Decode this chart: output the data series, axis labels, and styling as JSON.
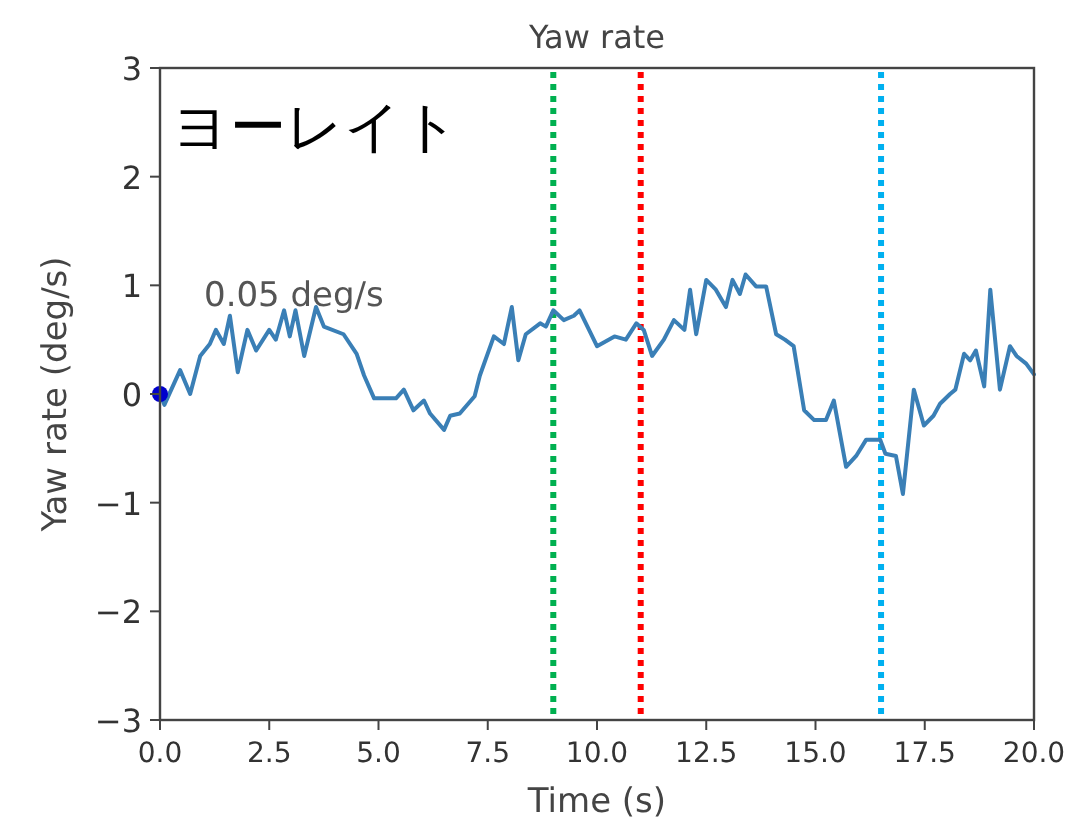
{
  "chart_data": {
    "type": "line",
    "title": "Yaw rate",
    "xlabel": "Time (s)",
    "ylabel": "Yaw rate (deg/s)",
    "annotations": [
      "ヨーレイト",
      "0.05 deg/s"
    ],
    "xlim": [
      0,
      20
    ],
    "ylim": [
      -3,
      3
    ],
    "xticks": [
      {
        "value": 0,
        "label": "0.0"
      },
      {
        "value": 2.5,
        "label": "2.5"
      },
      {
        "value": 5,
        "label": "5.0"
      },
      {
        "value": 7.5,
        "label": "7.5"
      },
      {
        "value": 10,
        "label": "10.0"
      },
      {
        "value": 12.5,
        "label": "12.5"
      },
      {
        "value": 15,
        "label": "15.0"
      },
      {
        "value": 17.5,
        "label": "17.5"
      },
      {
        "value": 20,
        "label": "20.0"
      }
    ],
    "yticks": [
      -3,
      -2,
      -1,
      0,
      1,
      2,
      3
    ],
    "series": [
      {
        "type": "line",
        "color": "#3a7fb6",
        "x": [
          0,
          0.1,
          0.46,
          0.69,
          0.92,
          1.14,
          1.28,
          1.46,
          1.6,
          1.78,
          2.0,
          2.2,
          2.5,
          2.65,
          2.84,
          2.97,
          3.1,
          3.3,
          3.57,
          3.75,
          4.2,
          4.5,
          4.67,
          4.9,
          5.4,
          5.58,
          5.8,
          6.04,
          6.18,
          6.5,
          6.64,
          6.86,
          7.2,
          7.32,
          7.64,
          7.87,
          8.05,
          8.2,
          8.37,
          8.7,
          8.83,
          9.0,
          9.24,
          9.47,
          9.6,
          10.0,
          10.4,
          10.66,
          10.9,
          11.07,
          11.26,
          11.53,
          11.76,
          12.0,
          12.13,
          12.27,
          12.5,
          12.72,
          12.95,
          13.1,
          13.27,
          13.4,
          13.64,
          13.87,
          14.1,
          14.3,
          14.5,
          14.74,
          14.97,
          15.24,
          15.42,
          15.7,
          15.93,
          16.16,
          16.48,
          16.6,
          16.84,
          17.0,
          17.25,
          17.48,
          17.7,
          17.85,
          18.08,
          18.2,
          18.4,
          18.54,
          18.67,
          18.86,
          19.0,
          19.22,
          19.45,
          19.6,
          19.82,
          20.0
        ],
        "values": [
          0.0,
          -0.1,
          0.22,
          0.0,
          0.35,
          0.46,
          0.59,
          0.46,
          0.72,
          0.2,
          0.59,
          0.4,
          0.59,
          0.5,
          0.77,
          0.53,
          0.77,
          0.35,
          0.8,
          0.62,
          0.55,
          0.37,
          0.17,
          -0.04,
          -0.04,
          0.04,
          -0.15,
          -0.06,
          -0.18,
          -0.33,
          -0.2,
          -0.18,
          -0.02,
          0.17,
          0.53,
          0.46,
          0.8,
          0.31,
          0.55,
          0.65,
          0.62,
          0.77,
          0.68,
          0.72,
          0.77,
          0.44,
          0.53,
          0.5,
          0.65,
          0.59,
          0.35,
          0.5,
          0.68,
          0.59,
          0.96,
          0.55,
          1.05,
          0.96,
          0.8,
          1.05,
          0.92,
          1.1,
          0.99,
          0.99,
          0.55,
          0.5,
          0.44,
          -0.15,
          -0.24,
          -0.24,
          -0.06,
          -0.67,
          -0.57,
          -0.42,
          -0.42,
          -0.55,
          -0.57,
          -0.92,
          0.04,
          -0.29,
          -0.2,
          -0.09,
          0.0,
          0.04,
          0.37,
          0.31,
          0.4,
          0.07,
          0.96,
          0.04,
          0.44,
          0.35,
          0.28,
          0.18
        ]
      },
      {
        "type": "scatter",
        "color": "#0000cc",
        "marker": "circle",
        "x": [
          0
        ],
        "values": [
          0.0
        ]
      }
    ],
    "ref_lines": [
      {
        "axis": "x",
        "value": 9,
        "color": "#00b050",
        "line_style": "dotted"
      },
      {
        "axis": "x",
        "value": 11,
        "color": "#ff0000",
        "line_style": "dotted"
      },
      {
        "axis": "x",
        "value": 16.5,
        "color": "#00b0f0",
        "line_style": "dotted"
      }
    ]
  }
}
